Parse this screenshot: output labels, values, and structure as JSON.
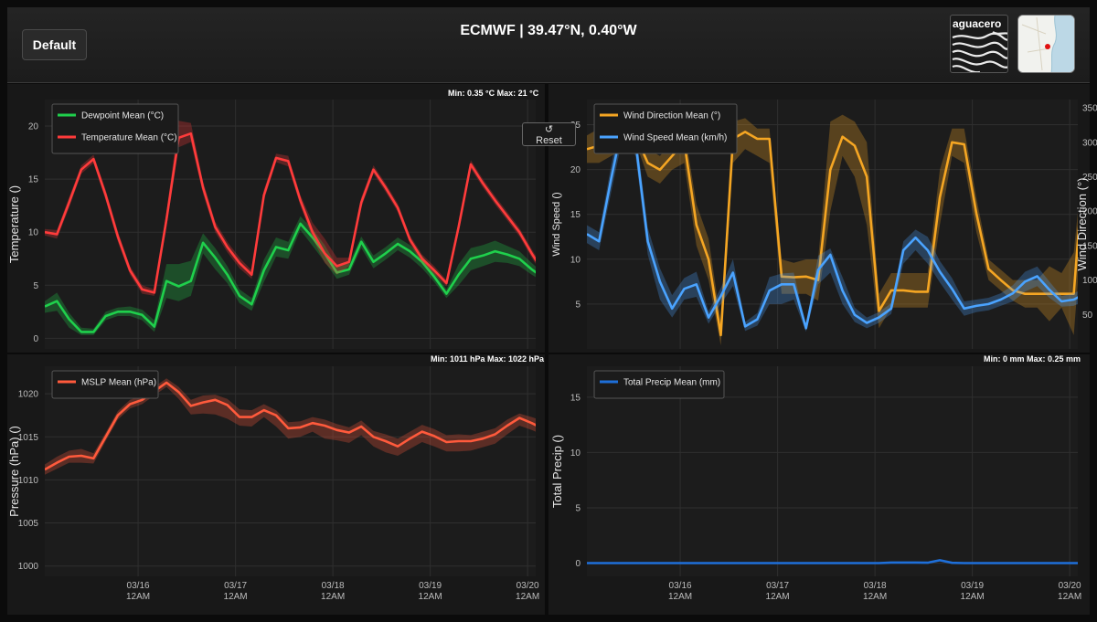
{
  "header": {
    "default_button": "Default",
    "title": "ECMWF | 39.47°N, 0.40°W",
    "logo_text": "aguacero"
  },
  "reset_button": {
    "icon": "↺",
    "label": "Reset"
  },
  "colors": {
    "dewpoint": "#1fd04c",
    "temperature": "#ff3b3b",
    "wind_direction": "#f5a623",
    "wind_speed": "#4aa3ff",
    "mslp": "#ff5a3c",
    "precip": "#1e6fd9"
  },
  "x_ticks": [
    {
      "x": 23,
      "label": "03/16",
      "sub": "12AM"
    },
    {
      "x": 47,
      "label": "03/17",
      "sub": "12AM"
    },
    {
      "x": 71,
      "label": "03/18",
      "sub": "12AM"
    },
    {
      "x": 95,
      "label": "03/19",
      "sub": "12AM"
    },
    {
      "x": 119,
      "label": "03/20",
      "sub": "12AM"
    }
  ],
  "chart_data": [
    {
      "type": "line",
      "id": "temperature",
      "title": "Min: 0.35 °C Max: 21 °C",
      "ylabel": "Temperature ()",
      "ylim": [
        -1,
        22.5
      ],
      "yticks": [
        0,
        5,
        10,
        15,
        20
      ],
      "xlim": [
        0,
        121
      ],
      "legend": "top-left",
      "series": [
        {
          "name": "Dewpoint Mean (°C)",
          "color_key": "dewpoint",
          "x": [
            0,
            3,
            6,
            9,
            12,
            15,
            18,
            21,
            24,
            27,
            30,
            33,
            36,
            39,
            42,
            45,
            48,
            51,
            54,
            57,
            60,
            63,
            66,
            69,
            72,
            75,
            78,
            81,
            84,
            87,
            90,
            93,
            96,
            99,
            102,
            105,
            108,
            111,
            114,
            117,
            120,
            123
          ],
          "values": [
            3.0,
            3.5,
            1.8,
            0.6,
            0.6,
            2.1,
            2.5,
            2.5,
            2.2,
            1.1,
            5.4,
            4.9,
            5.4,
            9.0,
            7.6,
            6.0,
            4.0,
            3.2,
            6.4,
            8.6,
            8.3,
            10.8,
            9.5,
            8.0,
            6.2,
            6.5,
            9.1,
            7.2,
            8.0,
            8.9,
            8.2,
            7.2,
            5.8,
            4.2,
            6.0,
            7.5,
            7.8,
            8.2,
            7.9,
            7.5,
            6.5,
            5.7
          ],
          "band_low": [
            2.4,
            2.6,
            1.0,
            0.3,
            0.3,
            1.7,
            2.1,
            2.1,
            1.7,
            0.6,
            3.8,
            3.5,
            4.0,
            8.0,
            6.5,
            5.2,
            3.3,
            2.6,
            5.3,
            7.7,
            7.5,
            10.2,
            8.7,
            7.2,
            5.6,
            6.0,
            8.5,
            6.6,
            7.4,
            8.3,
            7.6,
            6.6,
            5.3,
            3.8,
            5.0,
            6.4,
            6.8,
            7.2,
            7.1,
            6.8,
            6.0,
            5.3
          ],
          "band_high": [
            3.5,
            4.3,
            2.4,
            1.0,
            0.9,
            2.5,
            2.9,
            3.0,
            2.7,
            1.7,
            7.0,
            7.0,
            7.3,
            9.9,
            8.5,
            6.8,
            4.6,
            3.8,
            7.4,
            9.5,
            9.1,
            11.5,
            10.3,
            8.8,
            6.8,
            7.1,
            9.6,
            7.8,
            8.6,
            9.5,
            8.8,
            7.8,
            6.3,
            4.6,
            7.0,
            8.5,
            8.8,
            9.2,
            8.7,
            8.2,
            7.1,
            6.1
          ]
        },
        {
          "name": "Temperature Mean (°C)",
          "color_key": "temperature",
          "x": [
            0,
            3,
            6,
            9,
            12,
            15,
            18,
            21,
            24,
            27,
            30,
            33,
            36,
            39,
            42,
            45,
            48,
            51,
            54,
            57,
            60,
            63,
            66,
            69,
            72,
            75,
            78,
            81,
            84,
            87,
            90,
            93,
            96,
            99,
            102,
            105,
            108,
            111,
            114,
            117,
            120,
            123
          ],
          "values": [
            10.0,
            9.8,
            12.8,
            15.9,
            16.9,
            13.5,
            9.6,
            6.4,
            4.6,
            4.3,
            11.2,
            18.9,
            19.3,
            14.2,
            10.5,
            8.6,
            7.1,
            6.0,
            13.5,
            17.0,
            16.7,
            13.0,
            10.0,
            8.0,
            6.8,
            7.2,
            12.8,
            15.9,
            14.2,
            12.3,
            9.3,
            7.5,
            6.4,
            5.2,
            10.5,
            16.4,
            14.6,
            13.0,
            11.5,
            10.0,
            8.0,
            6.2
          ],
          "band_low": [
            9.7,
            9.4,
            12.3,
            15.5,
            16.5,
            13.0,
            9.1,
            6.0,
            4.2,
            4.0,
            10.5,
            18.0,
            18.5,
            13.6,
            10.0,
            8.1,
            6.6,
            5.6,
            13.0,
            16.6,
            16.2,
            12.5,
            9.4,
            7.1,
            6.0,
            6.8,
            12.3,
            15.5,
            13.8,
            11.9,
            8.9,
            7.1,
            6.0,
            4.9,
            10.0,
            16.0,
            14.2,
            12.6,
            11.1,
            9.6,
            7.6,
            5.8
          ],
          "band_high": [
            10.3,
            10.2,
            13.3,
            16.3,
            17.3,
            14.0,
            10.1,
            6.8,
            5.0,
            4.6,
            11.9,
            20.5,
            20.3,
            14.8,
            11.0,
            9.1,
            7.6,
            6.4,
            14.0,
            17.4,
            17.2,
            13.5,
            10.9,
            9.4,
            7.6,
            7.6,
            13.3,
            16.3,
            14.6,
            12.7,
            9.7,
            7.9,
            6.8,
            5.5,
            11.0,
            16.8,
            15.0,
            13.4,
            11.9,
            10.4,
            8.4,
            6.6
          ]
        }
      ]
    },
    {
      "type": "line",
      "id": "wind",
      "title": "",
      "ylabel": "Wind Speed ()",
      "ylabel_right": "Wind Direction (°)",
      "ylim": [
        0,
        27.8
      ],
      "yticks": [
        5,
        10,
        15,
        20,
        25
      ],
      "ylim_right": [
        0,
        362
      ],
      "yticks_right": [
        50,
        100,
        150,
        200,
        250,
        300,
        350
      ],
      "xlim": [
        0,
        121
      ],
      "legend": "top-left",
      "series": [
        {
          "name": "Wind Direction Mean (°)",
          "color_key": "wind_direction",
          "axis": "right",
          "x": [
            0,
            3,
            6,
            9,
            12,
            15,
            18,
            21,
            24,
            27,
            30,
            33,
            36,
            39,
            42,
            45,
            48,
            51,
            54,
            57,
            60,
            63,
            66,
            69,
            72,
            75,
            78,
            81,
            84,
            87,
            90,
            93,
            96,
            99,
            102,
            105,
            108,
            111,
            114,
            117,
            120,
            123
          ],
          "values": [
            290,
            295,
            300,
            305,
            310,
            270,
            260,
            280,
            300,
            180,
            130,
            20,
            305,
            315,
            305,
            305,
            105,
            104,
            105,
            100,
            260,
            308,
            295,
            250,
            55,
            85,
            85,
            83,
            83,
            220,
            300,
            297,
            197,
            116,
            100,
            85,
            80,
            80,
            80,
            80,
            80,
            310
          ],
          "band_low": [
            270,
            270,
            280,
            290,
            300,
            250,
            240,
            260,
            270,
            150,
            100,
            5,
            270,
            290,
            280,
            270,
            80,
            80,
            80,
            70,
            200,
            280,
            250,
            180,
            30,
            60,
            60,
            60,
            60,
            180,
            280,
            270,
            170,
            100,
            85,
            70,
            60,
            60,
            40,
            60,
            20,
            250
          ],
          "band_high": [
            310,
            320,
            320,
            320,
            320,
            290,
            280,
            300,
            320,
            210,
            160,
            40,
            330,
            335,
            320,
            320,
            130,
            125,
            130,
            130,
            330,
            340,
            330,
            300,
            80,
            110,
            110,
            110,
            110,
            260,
            320,
            320,
            220,
            130,
            115,
            100,
            100,
            100,
            120,
            110,
            140,
            315
          ]
        },
        {
          "name": "Wind Speed Mean (km/h)",
          "color_key": "wind_speed",
          "axis": "left",
          "x": [
            0,
            3,
            6,
            9,
            12,
            15,
            18,
            21,
            24,
            27,
            30,
            33,
            36,
            39,
            42,
            45,
            48,
            51,
            54,
            57,
            60,
            63,
            66,
            69,
            72,
            75,
            78,
            81,
            84,
            87,
            90,
            93,
            96,
            99,
            102,
            105,
            108,
            111,
            114,
            117,
            120,
            123
          ],
          "values": [
            12.8,
            12.0,
            19.0,
            25.5,
            23.0,
            12.0,
            7.5,
            4.5,
            6.7,
            7.2,
            3.5,
            5.9,
            8.5,
            2.5,
            3.3,
            6.5,
            7.2,
            7.2,
            2.3,
            8.8,
            10.5,
            6.5,
            3.8,
            2.9,
            3.5,
            4.5,
            11.0,
            12.4,
            11.0,
            8.6,
            6.7,
            4.5,
            4.8,
            5.0,
            5.5,
            6.2,
            7.5,
            8.1,
            6.6,
            5.3,
            5.5,
            6.2
          ],
          "band_low": [
            11.8,
            11.0,
            17.5,
            24.0,
            21.5,
            10.5,
            5.5,
            3.5,
            5.5,
            5.8,
            2.8,
            5.0,
            7.0,
            2.0,
            2.6,
            5.0,
            5.0,
            5.5,
            1.9,
            7.2,
            8.5,
            5.0,
            3.0,
            2.3,
            2.9,
            3.9,
            9.5,
            11.0,
            9.5,
            7.4,
            5.5,
            3.7,
            4.1,
            4.3,
            4.8,
            5.3,
            6.4,
            7.0,
            5.7,
            4.7,
            4.8,
            5.5
          ],
          "band_high": [
            13.8,
            13.0,
            20.5,
            27.0,
            24.5,
            13.5,
            9.0,
            6.0,
            7.9,
            8.6,
            4.2,
            6.8,
            10.0,
            3.0,
            4.0,
            8.0,
            8.4,
            8.5,
            2.7,
            10.4,
            11.2,
            8.0,
            4.6,
            3.5,
            4.1,
            5.1,
            12.0,
            13.3,
            12.5,
            9.8,
            7.9,
            5.3,
            5.5,
            5.7,
            6.2,
            7.1,
            8.6,
            9.2,
            7.5,
            5.9,
            6.2,
            6.9
          ]
        }
      ]
    },
    {
      "type": "line",
      "id": "pressure",
      "title": "Min: 1011 hPa Max: 1022 hPa",
      "ylabel": "Pressure (hPa) ()",
      "ylim": [
        998.8,
        1023.2
      ],
      "yticks": [
        1000,
        1005,
        1010,
        1015,
        1020
      ],
      "xlim": [
        0,
        121
      ],
      "legend": "top-left",
      "series": [
        {
          "name": "MSLP Mean (hPa)",
          "color_key": "mslp",
          "x": [
            0,
            3,
            6,
            9,
            12,
            15,
            18,
            21,
            24,
            27,
            30,
            33,
            36,
            39,
            42,
            45,
            48,
            51,
            54,
            57,
            60,
            63,
            66,
            69,
            72,
            75,
            78,
            81,
            84,
            87,
            90,
            93,
            96,
            99,
            102,
            105,
            108,
            111,
            114,
            117,
            120,
            123
          ],
          "values": [
            1011.2,
            1012.0,
            1012.7,
            1012.8,
            1012.5,
            1015.0,
            1017.5,
            1018.8,
            1019.3,
            1020.3,
            1021.3,
            1020.2,
            1018.6,
            1019.0,
            1019.3,
            1018.7,
            1017.3,
            1017.3,
            1018.1,
            1017.5,
            1016.0,
            1016.1,
            1016.6,
            1016.3,
            1015.8,
            1015.5,
            1016.2,
            1015.0,
            1014.5,
            1013.9,
            1014.8,
            1015.6,
            1015.1,
            1014.4,
            1014.5,
            1014.5,
            1014.8,
            1015.3,
            1016.3,
            1017.2,
            1016.6,
            1015.9
          ],
          "band_low": [
            1010.6,
            1011.3,
            1012.0,
            1012.0,
            1011.9,
            1014.5,
            1017.0,
            1018.3,
            1018.8,
            1019.8,
            1020.8,
            1019.4,
            1017.6,
            1017.7,
            1017.6,
            1017.1,
            1016.3,
            1016.2,
            1017.3,
            1016.2,
            1014.8,
            1015.0,
            1015.6,
            1014.8,
            1014.6,
            1014.3,
            1015.2,
            1013.9,
            1013.2,
            1012.8,
            1013.6,
            1014.4,
            1013.9,
            1013.3,
            1013.3,
            1013.4,
            1013.8,
            1014.2,
            1015.3,
            1016.3,
            1015.8,
            1015.2
          ],
          "band_high": [
            1011.8,
            1012.7,
            1013.4,
            1013.6,
            1013.1,
            1015.5,
            1018.0,
            1019.3,
            1019.8,
            1020.8,
            1021.8,
            1020.8,
            1019.3,
            1019.8,
            1019.9,
            1019.4,
            1018.2,
            1018.1,
            1018.8,
            1018.1,
            1016.7,
            1016.8,
            1017.3,
            1017.0,
            1016.5,
            1016.1,
            1016.9,
            1015.7,
            1015.3,
            1014.8,
            1015.6,
            1016.4,
            1015.9,
            1015.2,
            1015.3,
            1015.2,
            1015.6,
            1016.0,
            1017.0,
            1017.7,
            1017.3,
            1016.8
          ]
        }
      ]
    },
    {
      "type": "line",
      "id": "precip",
      "title": "Min: 0 mm Max: 0.25 mm",
      "ylabel": "Total Precip ()",
      "ylim": [
        -1.2,
        17.8
      ],
      "yticks": [
        0,
        5,
        10,
        15
      ],
      "xlim": [
        0,
        121
      ],
      "legend": "top-left",
      "series": [
        {
          "name": "Total Precip Mean (mm)",
          "color_key": "precip",
          "x": [
            0,
            3,
            6,
            9,
            12,
            15,
            18,
            21,
            24,
            27,
            30,
            33,
            36,
            39,
            42,
            45,
            48,
            51,
            54,
            57,
            60,
            63,
            66,
            69,
            72,
            75,
            78,
            81,
            84,
            87,
            90,
            93,
            96,
            99,
            102,
            105,
            108,
            111,
            114,
            117,
            120,
            123
          ],
          "values": [
            0,
            0,
            0,
            0,
            0,
            0,
            0,
            0,
            0,
            0,
            0,
            0,
            0,
            0,
            0,
            0,
            0,
            0,
            0,
            0,
            0,
            0,
            0,
            0,
            0,
            0.05,
            0.05,
            0.05,
            0.03,
            0.25,
            0.02,
            0,
            0,
            0,
            0,
            0,
            0,
            0,
            0,
            0,
            0,
            0
          ]
        }
      ]
    }
  ]
}
